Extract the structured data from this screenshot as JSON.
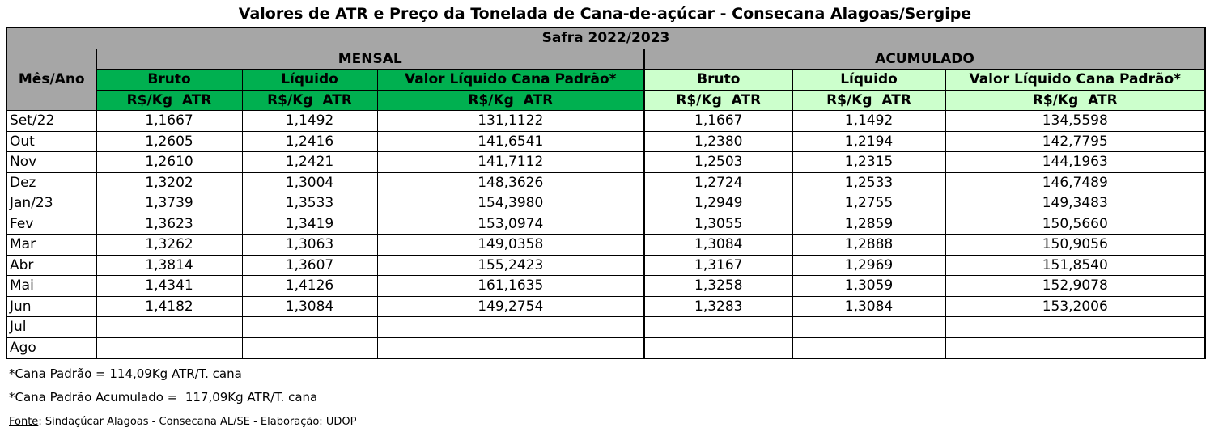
{
  "header": {
    "title": "Valores de ATR e Preço da Tonelada de Cana-de-açúcar - Consecana Alagoas/Sergipe"
  },
  "table": {
    "season": "Safra 2022/2023",
    "month_header": "Mês/Ano",
    "groups": [
      "MENSAL",
      "ACUMULADO"
    ],
    "columns": [
      "Bruto",
      "Líquido",
      "Valor Líquido Cana Padrão*",
      "Bruto",
      "Líquido",
      "Valor Líquido Cana Padrão*"
    ],
    "units": [
      "R$/Kg  ATR",
      "R$/Kg  ATR",
      "R$/Kg  ATR",
      "R$/Kg  ATR",
      "R$/Kg  ATR",
      "R$/Kg  ATR"
    ],
    "rows": [
      [
        "Set/22",
        "1,1667",
        "1,1492",
        "131,1122",
        "1,1667",
        "1,1492",
        "134,5598"
      ],
      [
        "Out",
        "1,2605",
        "1,2416",
        "141,6541",
        "1,2380",
        "1,2194",
        "142,7795"
      ],
      [
        "Nov",
        "1,2610",
        "1,2421",
        "141,7112",
        "1,2503",
        "1,2315",
        "144,1963"
      ],
      [
        "Dez",
        "1,3202",
        "1,3004",
        "148,3626",
        "1,2724",
        "1,2533",
        "146,7489"
      ],
      [
        "Jan/23",
        "1,3739",
        "1,3533",
        "154,3980",
        "1,2949",
        "1,2755",
        "149,3483"
      ],
      [
        "Fev",
        "1,3623",
        "1,3419",
        "153,0974",
        "1,3055",
        "1,2859",
        "150,5660"
      ],
      [
        "Mar",
        "1,3262",
        "1,3063",
        "149,0358",
        "1,3084",
        "1,2888",
        "150,9056"
      ],
      [
        "Abr",
        "1,3814",
        "1,3607",
        "155,2423",
        "1,3167",
        "1,2969",
        "151,8540"
      ],
      [
        "Mai",
        "1,4341",
        "1,4126",
        "161,1635",
        "1,3258",
        "1,3059",
        "152,9078"
      ],
      [
        "Jun",
        "1,4182",
        "1,3084",
        "149,2754",
        "1,3283",
        "1,3084",
        "153,2006"
      ],
      [
        "Jul"
      ],
      [
        "Ago"
      ]
    ]
  },
  "footer": {
    "notes": [
      "*Cana Padrão = 114,09Kg ATR/T. cana",
      "*Cana Padrão Acumulado =  117,09Kg ATR/T. cana"
    ],
    "source_label": "Fonte",
    "source_text": ": Sindaçúcar Alagoas - Consecana AL/SE - Elaboração: UDOP"
  }
}
